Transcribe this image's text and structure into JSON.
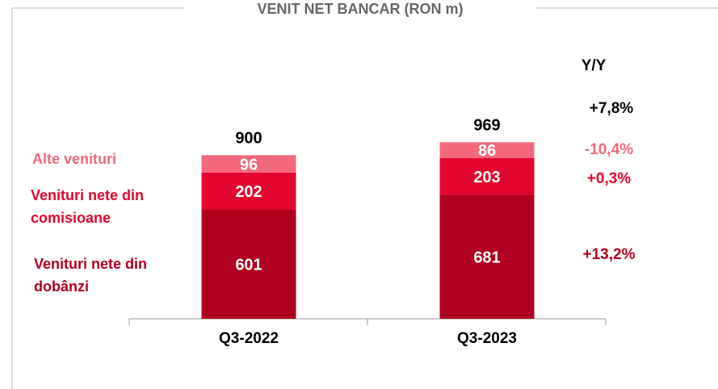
{
  "chart_data": {
    "type": "stacked_bar",
    "title": "VENIT NET BANCAR (RON m)",
    "categories": [
      "Q3-2022",
      "Q3-2023"
    ],
    "series": [
      {
        "name": "Venituri nete din dobânzi",
        "color": "#b0001f",
        "values": [
          601,
          681
        ],
        "yoy": "+13,2%"
      },
      {
        "name": "Venituri nete din comisioane",
        "color": "#e3062e",
        "values": [
          202,
          203
        ],
        "yoy": "+0,3%"
      },
      {
        "name": "Alte venituri",
        "color": "#f4687b",
        "values": [
          96,
          86
        ],
        "yoy": "-10,4%"
      }
    ],
    "totals": [
      900,
      969
    ],
    "yoy_header": "Y/Y",
    "yoy_total": "+7,8%"
  }
}
